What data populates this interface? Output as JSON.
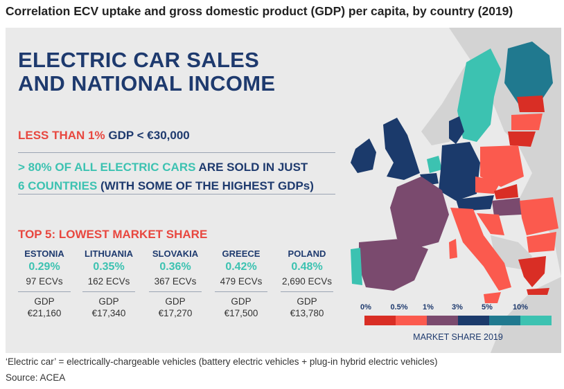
{
  "title": "Correlation ECV uptake and gross domestic product (GDP) per capita, by country (2019)",
  "headline": {
    "line1": "ELECTRIC CAR SALES",
    "line2": "AND NATIONAL INCOME"
  },
  "fact1": {
    "highlight": "LESS THAN 1%",
    "rest": "GDP < €30,000"
  },
  "fact2": {
    "line1_highlight": "> 80% OF ALL ELECTRIC CARS",
    "line1_rest": "ARE SOLD IN JUST",
    "line2_highlight": "6 COUNTRIES",
    "line2_rest": "(WITH SOME OF THE HIGHEST GDPs)"
  },
  "top5_title": "TOP 5: LOWEST MARKET SHARE",
  "gdp_label": "GDP",
  "countries": [
    {
      "name": "ESTONIA",
      "share": "0.29%",
      "ecvs": "97 ECVs",
      "gdp": "€21,160"
    },
    {
      "name": "LITHUANIA",
      "share": "0.35%",
      "ecvs": "162 ECVs",
      "gdp": "€17,340"
    },
    {
      "name": "SLOVAKIA",
      "share": "0.36%",
      "ecvs": "367 ECVs",
      "gdp": "€17,270"
    },
    {
      "name": "GREECE",
      "share": "0.42%",
      "ecvs": "479 ECVs",
      "gdp": "€17,500"
    },
    {
      "name": "POLAND",
      "share": "0.48%",
      "ecvs": "2,690 ECVs",
      "gdp": "€13,780"
    }
  ],
  "legend": {
    "title": "MARKET SHARE 2019",
    "ticks": [
      "0%",
      "0.5%",
      "1%",
      "3%",
      "5%",
      "10%"
    ],
    "colors": [
      "#d92e25",
      "#fb5a4e",
      "#7a4a6e",
      "#1b3a6b",
      "#20798f",
      "#3cc2b1"
    ]
  },
  "footnote": "‘Electric car’ = electrically-chargeable vehicles (battery electric vehicles + plug-in hybrid electric vehicles)",
  "source": "Source: ACEA"
}
